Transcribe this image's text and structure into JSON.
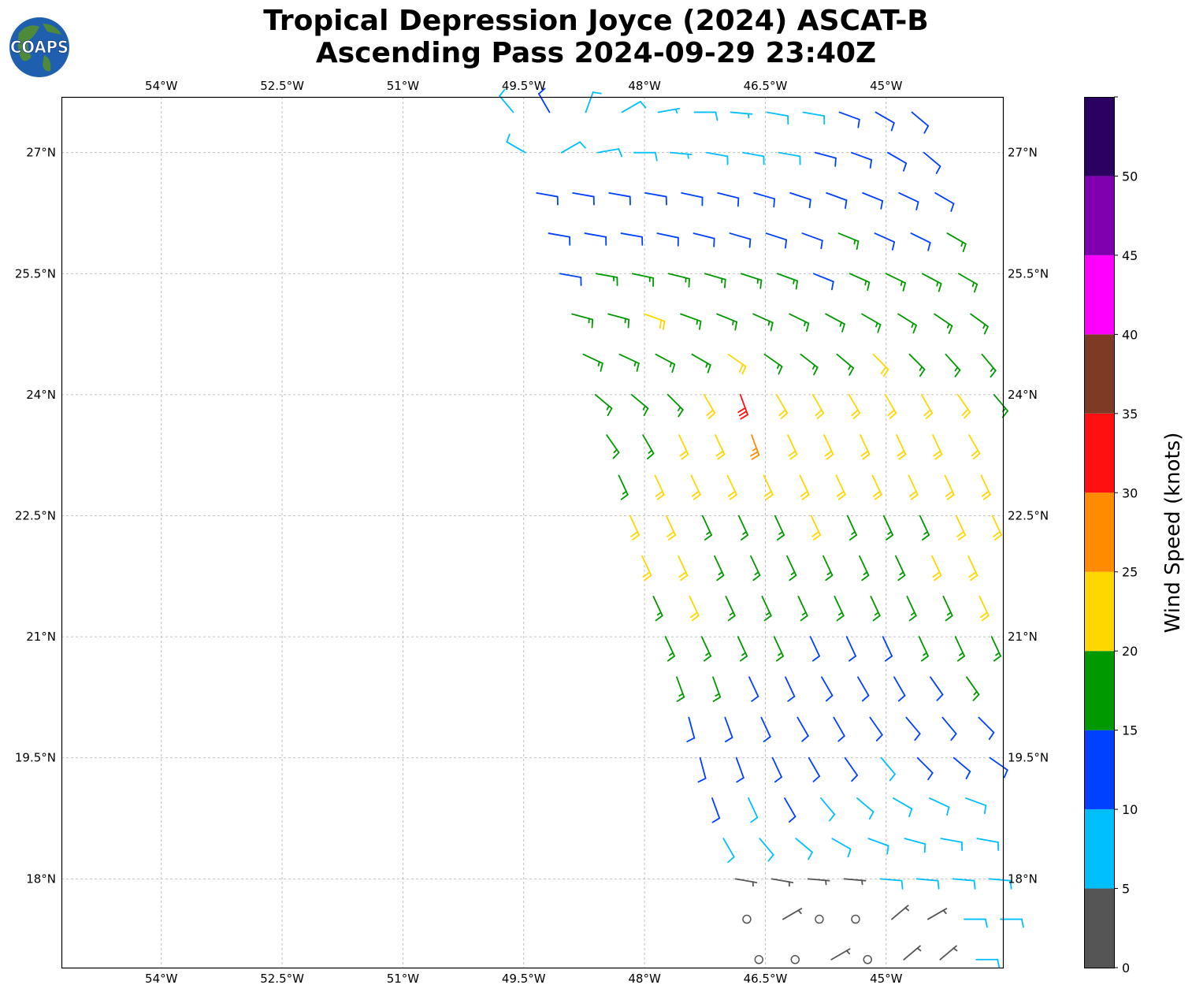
{
  "title": {
    "line1": "Tropical Depression Joyce (2024) ASCAT-B",
    "line2": "Ascending Pass 2024-09-29 23:40Z"
  },
  "logo": {
    "text": "COAPS",
    "icon": "globe-icon"
  },
  "chart_data": {
    "type": "wind-barbs",
    "lon_range": [
      -55.24,
      -43.55
    ],
    "lat_range": [
      16.9,
      27.69
    ],
    "grid": true,
    "x_ticks": [
      {
        "value": -54,
        "label": "54°W"
      },
      {
        "value": -52.5,
        "label": "52.5°W"
      },
      {
        "value": -51,
        "label": "51°W"
      },
      {
        "value": -49.5,
        "label": "49.5°W"
      },
      {
        "value": -48,
        "label": "48°W"
      },
      {
        "value": -46.5,
        "label": "46.5°W"
      },
      {
        "value": -45,
        "label": "45°W"
      }
    ],
    "y_ticks": [
      {
        "value": 27,
        "label": "27°N"
      },
      {
        "value": 25.5,
        "label": "25.5°N"
      },
      {
        "value": 24,
        "label": "24°N"
      },
      {
        "value": 22.5,
        "label": "22.5°N"
      },
      {
        "value": 21,
        "label": "21°N"
      },
      {
        "value": 19.5,
        "label": "19.5°N"
      },
      {
        "value": 18,
        "label": "18°N"
      }
    ],
    "colorbar": {
      "label": "Wind Speed (knots)",
      "range": [
        0,
        55
      ],
      "bounds": [
        0,
        5,
        10,
        15,
        20,
        25,
        30,
        35,
        40,
        45,
        50,
        55
      ],
      "colors": [
        "#555555",
        "#00bfff",
        "#0040ff",
        "#009900",
        "#ffd700",
        "#ff8c00",
        "#ff1010",
        "#7f3a25",
        "#ff00ff",
        "#8000b0",
        "#2a0060"
      ],
      "tick_labels": [
        "0",
        "5",
        "10",
        "15",
        "20",
        "25",
        "30",
        "35",
        "40",
        "45",
        "50"
      ]
    },
    "barb_column_step_deg": 0.45,
    "rows": [
      {
        "lat": 27.5,
        "lon_start": -49.63,
        "speed": [
          8,
          12,
          8,
          8,
          7,
          8,
          7,
          8,
          8,
          12,
          12,
          12
        ],
        "dir": [
          320,
          330,
          20,
          60,
          80,
          90,
          95,
          100,
          100,
          110,
          120,
          130
        ]
      },
      {
        "lat": 27.0,
        "lon_start": -49.48,
        "speed": [
          8,
          8,
          8,
          8,
          7,
          8,
          8,
          8,
          12,
          12,
          12,
          12
        ],
        "dir": [
          300,
          60,
          80,
          90,
          95,
          100,
          100,
          100,
          105,
          110,
          120,
          130
        ]
      },
      {
        "lat": 26.5,
        "lon_start": -49.34,
        "speed": [
          12,
          12,
          12,
          12,
          12,
          12,
          12,
          12,
          12,
          12,
          12,
          12
        ],
        "dir": [
          100,
          100,
          100,
          100,
          102,
          104,
          106,
          108,
          110,
          112,
          115,
          120
        ]
      },
      {
        "lat": 26.0,
        "lon_start": -49.19,
        "speed": [
          12,
          12,
          12,
          12,
          12,
          12,
          12,
          12,
          17,
          12,
          12,
          17
        ],
        "dir": [
          100,
          100,
          100,
          102,
          104,
          106,
          108,
          110,
          112,
          114,
          116,
          120
        ]
      },
      {
        "lat": 25.5,
        "lon_start": -49.05,
        "speed": [
          12,
          17,
          17,
          17,
          17,
          17,
          17,
          12,
          17,
          17,
          17,
          17
        ],
        "dir": [
          100,
          100,
          102,
          104,
          106,
          108,
          110,
          112,
          114,
          116,
          118,
          120
        ]
      },
      {
        "lat": 25.0,
        "lon_start": -48.9,
        "speed": [
          17,
          17,
          22,
          17,
          17,
          17,
          17,
          17,
          17,
          17,
          17,
          17
        ],
        "dir": [
          105,
          105,
          110,
          110,
          112,
          114,
          116,
          118,
          120,
          122,
          124,
          126
        ]
      },
      {
        "lat": 24.5,
        "lon_start": -48.76,
        "speed": [
          17,
          17,
          17,
          17,
          22,
          17,
          17,
          17,
          22,
          17,
          17,
          17
        ],
        "dir": [
          115,
          115,
          118,
          120,
          125,
          125,
          128,
          130,
          135,
          135,
          138,
          140
        ]
      },
      {
        "lat": 24.0,
        "lon_start": -48.61,
        "speed": [
          17,
          17,
          17,
          22,
          32,
          22,
          22,
          22,
          22,
          22,
          22,
          17
        ],
        "dir": [
          130,
          130,
          135,
          150,
          160,
          150,
          150,
          150,
          150,
          150,
          145,
          140
        ]
      },
      {
        "lat": 23.5,
        "lon_start": -48.47,
        "speed": [
          17,
          17,
          22,
          22,
          27,
          22,
          22,
          22,
          22,
          22,
          22,
          22
        ],
        "dir": [
          145,
          150,
          155,
          155,
          160,
          155,
          155,
          155,
          155,
          155,
          150,
          150
        ]
      },
      {
        "lat": 23.0,
        "lon_start": -48.32,
        "speed": [
          17,
          22,
          22,
          22,
          22,
          22,
          22,
          22,
          22,
          22,
          22,
          22
        ],
        "dir": 155
      },
      {
        "lat": 22.5,
        "lon_start": -48.18,
        "speed": [
          22,
          22,
          17,
          17,
          17,
          22,
          17,
          17,
          17,
          22,
          22,
          22
        ],
        "dir": 155
      },
      {
        "lat": 22.0,
        "lon_start": -48.03,
        "speed": [
          22,
          22,
          17,
          17,
          17,
          17,
          17,
          17,
          22,
          22,
          22,
          22
        ],
        "dir": 155
      },
      {
        "lat": 21.5,
        "lon_start": -47.89,
        "speed": [
          17,
          22,
          17,
          17,
          17,
          17,
          17,
          17,
          17,
          22,
          17,
          17
        ],
        "dir": 155
      },
      {
        "lat": 21.0,
        "lon_start": -47.74,
        "speed": [
          17,
          17,
          17,
          17,
          12,
          12,
          12,
          17,
          17,
          17,
          17,
          17
        ],
        "dir": 155
      },
      {
        "lat": 20.5,
        "lon_start": -47.6,
        "speed": [
          17,
          17,
          12,
          12,
          12,
          12,
          12,
          12,
          17,
          12,
          12,
          17
        ],
        "dir": [
          160,
          160,
          155,
          155,
          150,
          150,
          150,
          145,
          145,
          140,
          140,
          135
        ]
      },
      {
        "lat": 20.0,
        "lon_start": -47.45,
        "speed": [
          12,
          12,
          12,
          12,
          12,
          12,
          12,
          12,
          12,
          12,
          12,
          12
        ],
        "dir": [
          165,
          160,
          155,
          150,
          150,
          145,
          140,
          140,
          135,
          130,
          125,
          120
        ]
      },
      {
        "lat": 19.5,
        "lon_start": -47.31,
        "speed": [
          12,
          12,
          12,
          12,
          12,
          8,
          12,
          12,
          12,
          12,
          12,
          12
        ],
        "dir": [
          165,
          160,
          155,
          150,
          145,
          140,
          135,
          130,
          125,
          120,
          115,
          110
        ]
      },
      {
        "lat": 19.0,
        "lon_start": -47.16,
        "speed": [
          12,
          8,
          12,
          8,
          8,
          8,
          8,
          8,
          12,
          12,
          12,
          12
        ],
        "dir": [
          160,
          155,
          150,
          140,
          130,
          120,
          115,
          110,
          105,
          105,
          100,
          100
        ]
      },
      {
        "lat": 18.5,
        "lon_start": -47.02,
        "speed": [
          8,
          8,
          8,
          8,
          8,
          8,
          8,
          8,
          8,
          12,
          12,
          12
        ],
        "dir": [
          150,
          140,
          130,
          120,
          110,
          105,
          100,
          100,
          100,
          100,
          95,
          95
        ]
      },
      {
        "lat": 18.0,
        "lon_start": -46.87,
        "speed": [
          4,
          4,
          4,
          4,
          8,
          8,
          8,
          8,
          8,
          8,
          8,
          8
        ],
        "dir": [
          100,
          100,
          95,
          95,
          95,
          95,
          95,
          95,
          95,
          95,
          95,
          95
        ]
      },
      {
        "lat": 17.5,
        "lon_start": -46.73,
        "speed": [
          0,
          4,
          0,
          0,
          4,
          4,
          8,
          8,
          8,
          8,
          8,
          8
        ],
        "dir": [
          90,
          60,
          90,
          90,
          50,
          60,
          90,
          90,
          90,
          90,
          90,
          90
        ]
      },
      {
        "lat": 17.0,
        "lon_start": -46.58,
        "speed": [
          0,
          0,
          4,
          0,
          4,
          4,
          8,
          8,
          8,
          8,
          8,
          8
        ],
        "dir": [
          90,
          90,
          60,
          90,
          50,
          50,
          90,
          90,
          90,
          90,
          90,
          90
        ]
      }
    ]
  }
}
